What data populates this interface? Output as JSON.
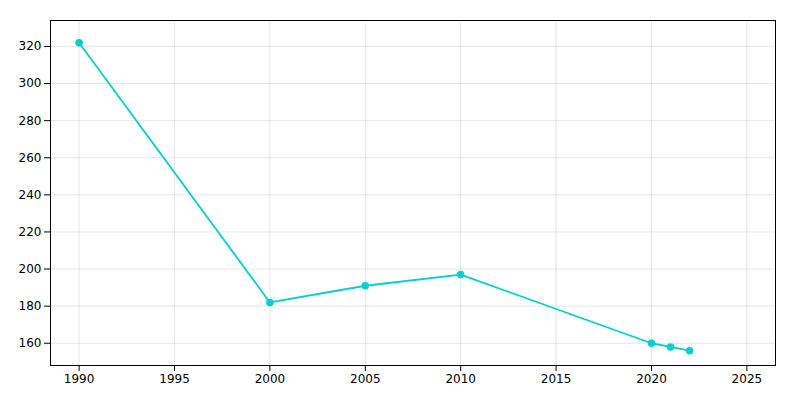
{
  "chart_data": {
    "type": "line",
    "x": [
      1990,
      2000,
      2005,
      2010,
      2020,
      2021,
      2022
    ],
    "values": [
      322,
      182,
      191,
      197,
      160,
      158,
      156
    ],
    "color": "#00CED1",
    "marker": "o",
    "xlim": [
      1988.5,
      2026.5
    ],
    "ylim": [
      148,
      334
    ],
    "xticks": [
      1990,
      1995,
      2000,
      2005,
      2010,
      2015,
      2020,
      2025
    ],
    "yticks": [
      160,
      180,
      200,
      220,
      240,
      260,
      280,
      300,
      320
    ],
    "grid": true
  }
}
